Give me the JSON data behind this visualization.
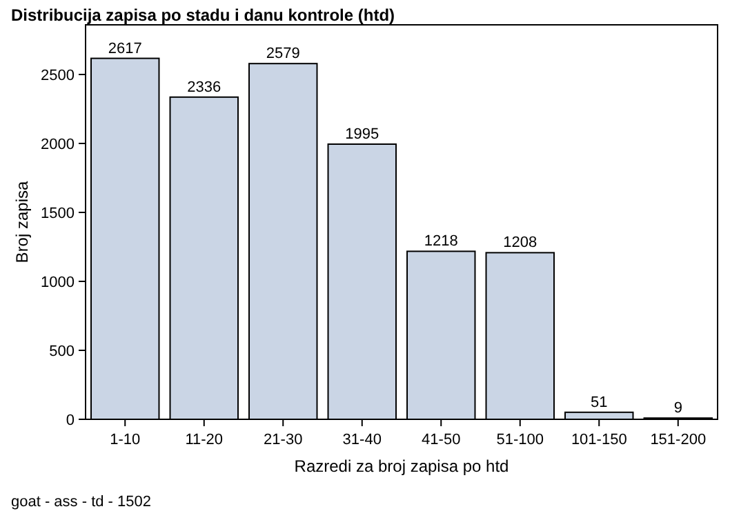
{
  "chart_data": {
    "type": "bar",
    "title": "Distribucija zapisa po stadu i danu kontrole (htd)",
    "xlabel": "Razredi za broj zapisa po htd",
    "ylabel": "Broj zapisa",
    "categories": [
      "1-10",
      "11-20",
      "21-30",
      "31-40",
      "41-50",
      "51-100",
      "101-150",
      "151-200"
    ],
    "values": [
      2617,
      2336,
      2579,
      1995,
      1218,
      1208,
      51,
      9
    ],
    "color": "#cad5e5",
    "ylim": [
      0,
      2860
    ],
    "yticks": [
      0,
      500,
      1000,
      1500,
      2000,
      2500
    ],
    "data_labels": true,
    "grid": false,
    "annotations": [
      "goat - ass - td - 1502"
    ]
  }
}
